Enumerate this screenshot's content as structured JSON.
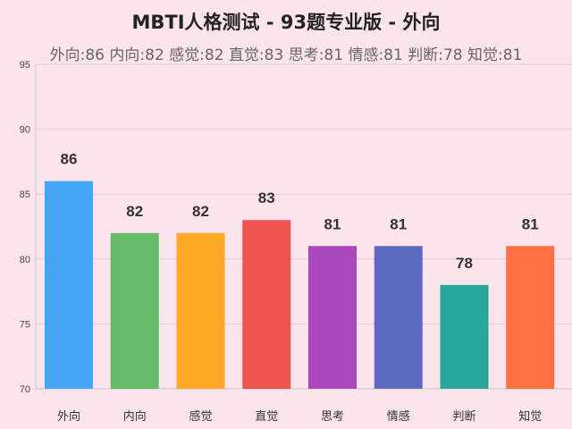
{
  "chart_data": {
    "type": "bar",
    "title": "MBTI人格测试 - 93题专业版 - 外向",
    "subtitle": "外向:86 内向:82 感觉:82 直觉:83 思考:81 情感:81 判断:78 知觉:81",
    "categories": [
      "外向",
      "内向",
      "感觉",
      "直觉",
      "思考",
      "情感",
      "判断",
      "知觉"
    ],
    "values": [
      86,
      82,
      82,
      83,
      81,
      81,
      78,
      81
    ],
    "data_labels": [
      "86",
      "82",
      "82",
      "83",
      "81",
      "81",
      "78",
      "81"
    ],
    "colors": [
      "#42a5f5",
      "#66bb6a",
      "#ffa726",
      "#ef5350",
      "#ab47bc",
      "#5c6bc0",
      "#26a69a",
      "#ff7043"
    ],
    "ylim": [
      70,
      95
    ],
    "yticks": [
      "70",
      "75",
      "80",
      "85",
      "90",
      "95"
    ],
    "ytick_values": [
      70,
      75,
      80,
      85,
      90,
      95
    ],
    "grid": true,
    "legend": "none"
  }
}
